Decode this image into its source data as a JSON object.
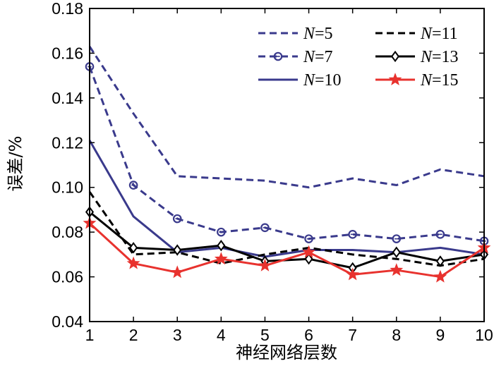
{
  "chart_data": {
    "type": "line",
    "title": "",
    "xlabel": "神经网络层数",
    "ylabel": "误差/%",
    "xlim": [
      1,
      10
    ],
    "ylim": [
      0.04,
      0.18
    ],
    "xticks": [
      "1",
      "2",
      "3",
      "4",
      "5",
      "6",
      "7",
      "8",
      "9",
      "10"
    ],
    "yticks": [
      "0.04",
      "0.06",
      "0.08",
      "0.10",
      "0.12",
      "0.14",
      "0.16",
      "0.18"
    ],
    "grid": false,
    "legend_position": "top-right",
    "x": [
      1,
      2,
      3,
      4,
      5,
      6,
      7,
      8,
      9,
      10
    ],
    "series": [
      {
        "name": "N=5",
        "label_var": "N",
        "label_val": "=5",
        "color": "#3a3a8c",
        "dash": "dashed",
        "marker": "none",
        "values": [
          0.163,
          0.133,
          0.105,
          0.104,
          0.103,
          0.1,
          0.104,
          0.101,
          0.108,
          0.105
        ]
      },
      {
        "name": "N=7",
        "label_var": "N",
        "label_val": "=7",
        "color": "#3a3a8c",
        "dash": "dashed",
        "marker": "circle",
        "values": [
          0.154,
          0.101,
          0.086,
          0.08,
          0.082,
          0.077,
          0.079,
          0.077,
          0.079,
          0.076
        ]
      },
      {
        "name": "N=10",
        "label_var": "N",
        "label_val": "=10",
        "color": "#3a3a8c",
        "dash": "solid",
        "marker": "none",
        "values": [
          0.121,
          0.087,
          0.071,
          0.073,
          0.069,
          0.072,
          0.072,
          0.071,
          0.073,
          0.07
        ]
      },
      {
        "name": "N=11",
        "label_var": "N",
        "label_val": "=11",
        "color": "#000000",
        "dash": "dashed",
        "marker": "none",
        "values": [
          0.098,
          0.07,
          0.071,
          0.066,
          0.07,
          0.073,
          0.07,
          0.068,
          0.065,
          0.068
        ]
      },
      {
        "name": "N=13",
        "label_var": "N",
        "label_val": "=13",
        "color": "#000000",
        "dash": "solid",
        "marker": "diamond",
        "values": [
          0.089,
          0.073,
          0.072,
          0.074,
          0.067,
          0.068,
          0.064,
          0.071,
          0.067,
          0.07
        ]
      },
      {
        "name": "N=15",
        "label_var": "N",
        "label_val": "=15",
        "color": "#e8322e",
        "dash": "solid",
        "marker": "star",
        "values": [
          0.084,
          0.066,
          0.062,
          0.068,
          0.065,
          0.071,
          0.061,
          0.063,
          0.06,
          0.073
        ]
      }
    ]
  }
}
